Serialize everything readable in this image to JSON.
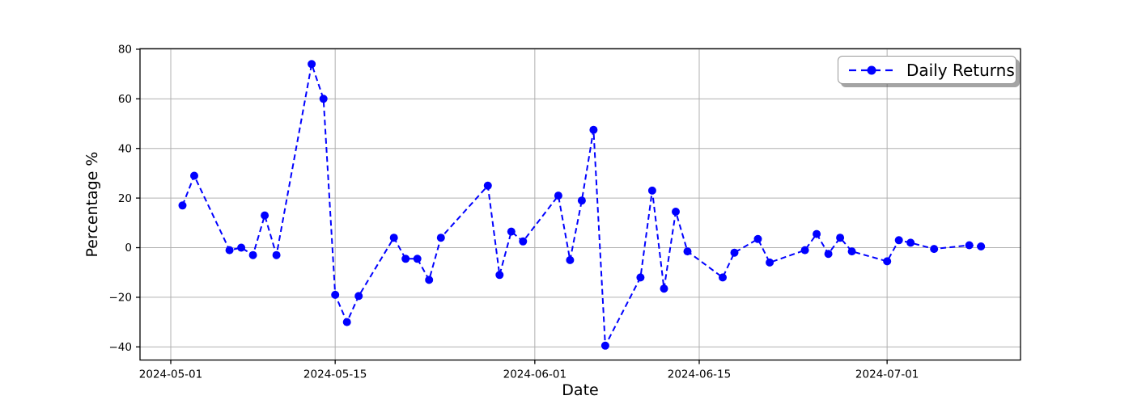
{
  "figure": {
    "background": "#ffffff",
    "accent_color": "#0000ff",
    "grid_color": "#b0b0b0",
    "spine_color": "#000000"
  },
  "chart_data": {
    "type": "line",
    "title": "",
    "xlabel": "Date",
    "ylabel": "Percentage %",
    "grid": true,
    "legend_position": "upper right",
    "line_style": "dashed",
    "marker": "circle",
    "color": "#0000ff",
    "ylim": [
      -45.3,
      80.2
    ],
    "yticks": [
      80,
      60,
      40,
      20,
      0,
      -20,
      -40
    ],
    "xticks": [
      "2024-05-01",
      "2024-05-15",
      "2024-06-01",
      "2024-06-15",
      "2024-07-01"
    ],
    "xlim_days": [
      -2.62,
      72.36
    ],
    "series": [
      {
        "name": "Daily Returns",
        "points": [
          [
            "2024-05-02",
            17
          ],
          [
            "2024-05-03",
            29
          ],
          [
            "2024-05-06",
            -1
          ],
          [
            "2024-05-07",
            0
          ],
          [
            "2024-05-08",
            -3
          ],
          [
            "2024-05-09",
            13
          ],
          [
            "2024-05-10",
            -3
          ],
          [
            "2024-05-13",
            74
          ],
          [
            "2024-05-14",
            60
          ],
          [
            "2024-05-15",
            -19
          ],
          [
            "2024-05-16",
            -30
          ],
          [
            "2024-05-17",
            -19.5
          ],
          [
            "2024-05-20",
            4
          ],
          [
            "2024-05-21",
            -4.5
          ],
          [
            "2024-05-22",
            -4.5
          ],
          [
            "2024-05-23",
            -13
          ],
          [
            "2024-05-24",
            4
          ],
          [
            "2024-05-28",
            25
          ],
          [
            "2024-05-29",
            -11
          ],
          [
            "2024-05-30",
            6.5
          ],
          [
            "2024-05-31",
            2.5
          ],
          [
            "2024-06-03",
            21
          ],
          [
            "2024-06-04",
            -5
          ],
          [
            "2024-06-05",
            19
          ],
          [
            "2024-06-06",
            47.5
          ],
          [
            "2024-06-07",
            -39.5
          ],
          [
            "2024-06-10",
            -12
          ],
          [
            "2024-06-11",
            23
          ],
          [
            "2024-06-12",
            -16.5
          ],
          [
            "2024-06-13",
            14.5
          ],
          [
            "2024-06-14",
            -1.5
          ],
          [
            "2024-06-17",
            -12
          ],
          [
            "2024-06-18",
            -2
          ],
          [
            "2024-06-20",
            3.5
          ],
          [
            "2024-06-21",
            -6
          ],
          [
            "2024-06-24",
            -1
          ],
          [
            "2024-06-25",
            5.5
          ],
          [
            "2024-06-26",
            -2.5
          ],
          [
            "2024-06-27",
            4
          ],
          [
            "2024-06-28",
            -1.5
          ],
          [
            "2024-07-01",
            -5.5
          ],
          [
            "2024-07-02",
            3
          ],
          [
            "2024-07-03",
            2
          ],
          [
            "2024-07-05",
            -0.5
          ],
          [
            "2024-07-08",
            1
          ],
          [
            "2024-07-09",
            0.5
          ]
        ]
      }
    ]
  }
}
